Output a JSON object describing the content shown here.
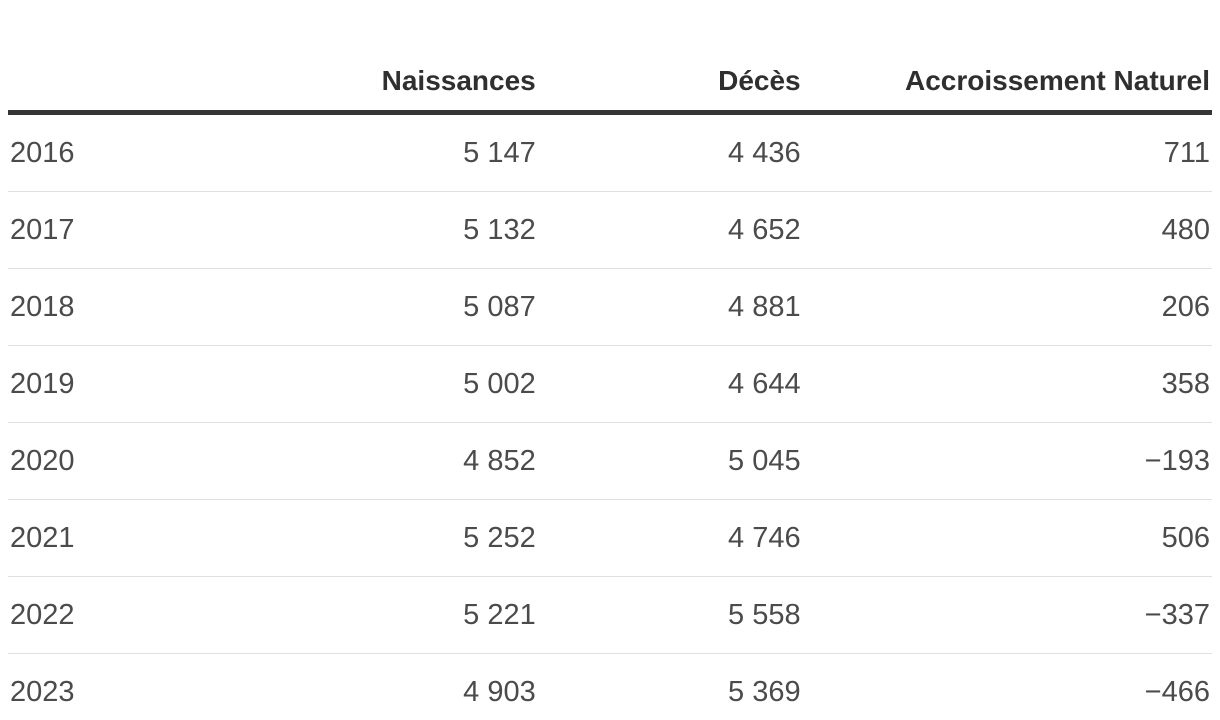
{
  "table": {
    "header": {
      "year": "",
      "naissances": "Naissances",
      "deces": "Décès",
      "accroissement": "Accroissement Naturel"
    },
    "rows": [
      {
        "year": "2016",
        "naissances": "5 147",
        "deces": "4 436",
        "accroissement": "711"
      },
      {
        "year": "2017",
        "naissances": "5 132",
        "deces": "4 652",
        "accroissement": "480"
      },
      {
        "year": "2018",
        "naissances": "5 087",
        "deces": "4 881",
        "accroissement": "206"
      },
      {
        "year": "2019",
        "naissances": "5 002",
        "deces": "4 644",
        "accroissement": "358"
      },
      {
        "year": "2020",
        "naissances": "4 852",
        "deces": "5 045",
        "accroissement": "−193"
      },
      {
        "year": "2021",
        "naissances": "5 252",
        "deces": "4 746",
        "accroissement": "506"
      },
      {
        "year": "2022",
        "naissances": "5 221",
        "deces": "5 558",
        "accroissement": "−337"
      },
      {
        "year": "2023",
        "naissances": "4 903",
        "deces": "5 369",
        "accroissement": "−466"
      }
    ]
  },
  "colors": {
    "background": "#ffffff",
    "header_text": "#2f2f2f",
    "header_rule": "#363636",
    "body_text": "#4b4b4b",
    "row_divider": "#e0e0e0"
  },
  "chart_data": {
    "type": "table",
    "title": "",
    "columns": [
      "",
      "Naissances",
      "Décès",
      "Accroissement Naturel"
    ],
    "categories": [
      "2016",
      "2017",
      "2018",
      "2019",
      "2020",
      "2021",
      "2022",
      "2023"
    ],
    "series": [
      {
        "name": "Naissances",
        "values": [
          5147,
          5132,
          5087,
          5002,
          4852,
          5252,
          5221,
          4903
        ]
      },
      {
        "name": "Décès",
        "values": [
          4436,
          4652,
          4881,
          4644,
          5045,
          4746,
          5558,
          5369
        ]
      },
      {
        "name": "Accroissement Naturel",
        "values": [
          711,
          480,
          206,
          358,
          -193,
          506,
          -337,
          -466
        ]
      }
    ],
    "layout": {
      "header_bold": true,
      "numbers_right_aligned": true,
      "thousands_separator": "space",
      "row_dividers": true,
      "outer_borders": false
    }
  }
}
